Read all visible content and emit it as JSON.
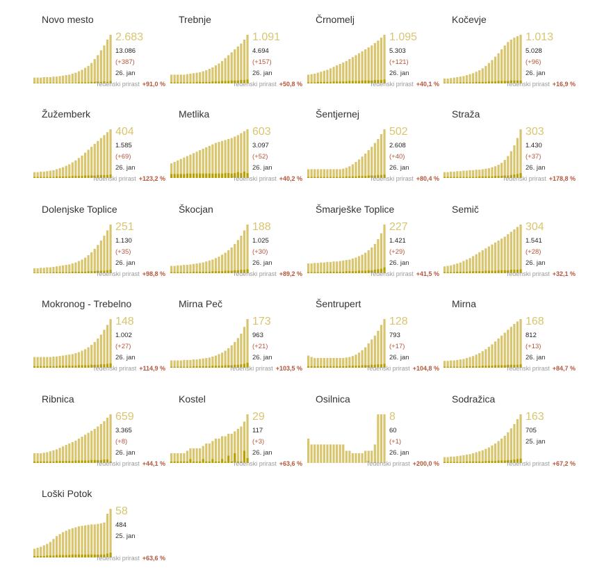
{
  "growth_label": "Tedenski prirast",
  "colors": {
    "active_bar": "#d8c56e",
    "new_bar": "#b8a000",
    "accent_text": "#d8c56e",
    "growth_value": "#b3553a"
  },
  "chart_data": [
    {
      "type": "bar",
      "title": "Novo mesto",
      "active": "2.683",
      "total": "13.086",
      "delta": "(+387)",
      "date": "26. jan",
      "growth": "+91,0 %",
      "active_series": [
        12,
        12,
        12,
        13,
        13,
        13,
        14,
        14,
        15,
        16,
        17,
        18,
        20,
        22,
        25,
        28,
        32,
        36,
        42,
        50,
        58,
        68,
        78,
        90,
        100
      ],
      "new_series": [
        1,
        1,
        1,
        1,
        1,
        1,
        1,
        1,
        1,
        1,
        1,
        1,
        1,
        1,
        2,
        2,
        2,
        2,
        3,
        3,
        3,
        3,
        4,
        3,
        5
      ]
    },
    {
      "type": "bar",
      "title": "Trebnje",
      "active": "1.091",
      "total": "4.694",
      "delta": "(+157)",
      "date": "26. jan",
      "growth": "+50,8 %",
      "active_series": [
        18,
        18,
        18,
        18,
        18,
        19,
        20,
        21,
        22,
        23,
        25,
        27,
        30,
        33,
        37,
        41,
        46,
        52,
        58,
        64,
        70,
        76,
        82,
        90,
        100
      ],
      "new_series": [
        2,
        2,
        2,
        2,
        2,
        2,
        2,
        2,
        3,
        3,
        3,
        3,
        3,
        4,
        4,
        4,
        5,
        5,
        5,
        6,
        6,
        6,
        7,
        7,
        8
      ]
    },
    {
      "type": "bar",
      "title": "Črnomelj",
      "active": "1.095",
      "total": "5.303",
      "delta": "(+121)",
      "date": "26. jan",
      "growth": "+40,1 %",
      "active_series": [
        18,
        19,
        20,
        22,
        24,
        26,
        28,
        31,
        34,
        37,
        40,
        43,
        46,
        50,
        54,
        58,
        62,
        66,
        70,
        74,
        78,
        83,
        88,
        94,
        100
      ],
      "new_series": [
        2,
        2,
        2,
        3,
        3,
        3,
        3,
        3,
        4,
        4,
        4,
        4,
        4,
        5,
        5,
        5,
        5,
        6,
        6,
        6,
        6,
        7,
        7,
        7,
        8
      ]
    },
    {
      "type": "bar",
      "title": "Kočevje",
      "active": "1.013",
      "total": "5.028",
      "delta": "(+96)",
      "date": "26. jan",
      "growth": "+16,9 %",
      "active_series": [
        10,
        10,
        11,
        12,
        13,
        14,
        15,
        17,
        19,
        21,
        24,
        27,
        31,
        36,
        42,
        48,
        55,
        62,
        70,
        78,
        85,
        90,
        94,
        97,
        100
      ],
      "new_series": [
        1,
        1,
        1,
        1,
        1,
        2,
        2,
        2,
        2,
        2,
        3,
        3,
        3,
        3,
        4,
        4,
        4,
        5,
        5,
        5,
        5,
        6,
        6,
        6,
        6
      ]
    },
    {
      "type": "bar",
      "title": "Žužemberk",
      "active": "404",
      "total": "1.585",
      "delta": "(+69)",
      "date": "26. jan",
      "growth": "+123,2 %",
      "active_series": [
        12,
        12,
        13,
        13,
        14,
        15,
        16,
        18,
        20,
        22,
        25,
        28,
        32,
        36,
        41,
        46,
        52,
        58,
        64,
        70,
        76,
        82,
        88,
        94,
        100
      ],
      "new_series": [
        2,
        2,
        2,
        2,
        2,
        2,
        2,
        3,
        3,
        3,
        3,
        3,
        4,
        4,
        4,
        4,
        5,
        5,
        5,
        5,
        6,
        6,
        6,
        6,
        7
      ]
    },
    {
      "type": "bar",
      "title": "Metlika",
      "active": "603",
      "total": "3.097",
      "delta": "(+52)",
      "date": "26. jan",
      "growth": "+40,2 %",
      "active_series": [
        30,
        33,
        36,
        39,
        42,
        45,
        48,
        51,
        54,
        57,
        60,
        63,
        66,
        69,
        72,
        74,
        76,
        78,
        80,
        82,
        85,
        88,
        92,
        96,
        100
      ],
      "new_series": [
        8,
        8,
        8,
        8,
        8,
        9,
        9,
        9,
        9,
        9,
        9,
        9,
        9,
        9,
        9,
        9,
        9,
        10,
        10,
        9,
        10,
        12,
        10,
        13,
        10
      ]
    },
    {
      "type": "bar",
      "title": "Šentjernej",
      "active": "502",
      "total": "2.608",
      "delta": "(+40)",
      "date": "26. jan",
      "growth": "+80,4 %",
      "active_series": [
        18,
        18,
        18,
        18,
        18,
        18,
        18,
        18,
        18,
        18,
        18,
        19,
        21,
        24,
        28,
        33,
        38,
        44,
        50,
        57,
        64,
        72,
        80,
        90,
        100
      ],
      "new_series": [
        2,
        2,
        2,
        2,
        2,
        2,
        2,
        2,
        2,
        2,
        2,
        2,
        3,
        3,
        3,
        3,
        4,
        4,
        4,
        5,
        5,
        5,
        6,
        6,
        7
      ]
    },
    {
      "type": "bar",
      "title": "Straža",
      "active": "303",
      "total": "1.430",
      "delta": "(+37)",
      "date": "26. jan",
      "growth": "+178,8 %",
      "active_series": [
        12,
        12,
        13,
        13,
        14,
        14,
        15,
        15,
        16,
        16,
        17,
        17,
        18,
        19,
        20,
        22,
        24,
        27,
        31,
        37,
        45,
        55,
        67,
        82,
        100
      ],
      "new_series": [
        2,
        2,
        2,
        2,
        2,
        2,
        2,
        2,
        2,
        2,
        2,
        3,
        3,
        3,
        3,
        3,
        4,
        4,
        4,
        5,
        5,
        6,
        7,
        8,
        10
      ]
    },
    {
      "type": "bar",
      "title": "Dolenjske Toplice",
      "active": "251",
      "total": "1.130",
      "delta": "(+35)",
      "date": "26. jan",
      "growth": "+98,8 %",
      "active_series": [
        10,
        10,
        11,
        11,
        12,
        12,
        13,
        14,
        15,
        16,
        17,
        18,
        20,
        22,
        25,
        28,
        32,
        37,
        43,
        50,
        58,
        67,
        77,
        88,
        100
      ],
      "new_series": [
        1,
        1,
        1,
        1,
        1,
        1,
        2,
        2,
        2,
        2,
        2,
        2,
        3,
        3,
        3,
        3,
        3,
        4,
        4,
        4,
        5,
        5,
        5,
        6,
        7
      ]
    },
    {
      "type": "bar",
      "title": "Škocjan",
      "active": "188",
      "total": "1.025",
      "delta": "(+30)",
      "date": "26. jan",
      "growth": "+89,2 %",
      "active_series": [
        15,
        15,
        16,
        16,
        17,
        17,
        18,
        19,
        20,
        21,
        22,
        24,
        26,
        28,
        31,
        34,
        38,
        42,
        47,
        53,
        60,
        68,
        77,
        88,
        100
      ],
      "new_series": [
        2,
        2,
        2,
        2,
        2,
        2,
        2,
        3,
        3,
        3,
        3,
        3,
        3,
        4,
        4,
        4,
        4,
        5,
        5,
        5,
        6,
        6,
        7,
        7,
        8
      ]
    },
    {
      "type": "bar",
      "title": "Šmarješke Toplice",
      "active": "227",
      "total": "1.421",
      "delta": "(+29)",
      "date": "26. jan",
      "growth": "+41,5 %",
      "active_series": [
        20,
        20,
        21,
        21,
        22,
        22,
        23,
        23,
        24,
        24,
        25,
        26,
        27,
        28,
        30,
        32,
        35,
        38,
        42,
        47,
        53,
        60,
        70,
        82,
        100
      ],
      "new_series": [
        2,
        2,
        2,
        2,
        2,
        2,
        3,
        3,
        3,
        3,
        3,
        3,
        4,
        4,
        4,
        4,
        5,
        5,
        5,
        6,
        6,
        7,
        8,
        9,
        12
      ]
    },
    {
      "type": "bar",
      "title": "Semič",
      "active": "304",
      "total": "1.541",
      "delta": "(+28)",
      "date": "26. jan",
      "growth": "+32,1 %",
      "active_series": [
        14,
        15,
        16,
        18,
        20,
        22,
        25,
        28,
        31,
        35,
        39,
        43,
        47,
        51,
        55,
        59,
        63,
        67,
        71,
        75,
        80,
        85,
        90,
        95,
        100
      ],
      "new_series": [
        2,
        2,
        2,
        2,
        3,
        3,
        3,
        3,
        4,
        4,
        4,
        4,
        4,
        5,
        5,
        5,
        5,
        6,
        6,
        6,
        6,
        7,
        7,
        7,
        8
      ]
    },
    {
      "type": "bar",
      "title": "Mokronog - Trebelno",
      "active": "148",
      "total": "1.002",
      "delta": "(+27)",
      "date": "26. jan",
      "growth": "+114,9 %",
      "active_series": [
        22,
        22,
        22,
        22,
        22,
        22,
        23,
        23,
        24,
        25,
        26,
        27,
        28,
        30,
        32,
        35,
        38,
        42,
        47,
        53,
        60,
        68,
        78,
        88,
        100
      ],
      "new_series": [
        3,
        3,
        3,
        3,
        3,
        3,
        3,
        3,
        4,
        4,
        4,
        4,
        4,
        4,
        5,
        5,
        5,
        5,
        6,
        6,
        6,
        7,
        7,
        8,
        9
      ]
    },
    {
      "type": "bar",
      "title": "Mirna Peč",
      "active": "173",
      "total": "963",
      "delta": "(+21)",
      "date": "26. jan",
      "growth": "+103,5 %",
      "active_series": [
        15,
        15,
        15,
        15,
        16,
        16,
        16,
        17,
        17,
        18,
        19,
        20,
        21,
        23,
        25,
        28,
        31,
        35,
        40,
        46,
        53,
        61,
        70,
        84,
        100
      ],
      "new_series": [
        2,
        2,
        2,
        2,
        2,
        2,
        2,
        3,
        3,
        3,
        3,
        3,
        3,
        4,
        4,
        4,
        4,
        5,
        5,
        5,
        6,
        6,
        7,
        8,
        10
      ]
    },
    {
      "type": "bar",
      "title": "Šentrupert",
      "active": "128",
      "total": "793",
      "delta": "(+17)",
      "date": "26. jan",
      "growth": "+104,8 %",
      "active_series": [
        25,
        22,
        20,
        20,
        20,
        20,
        20,
        20,
        20,
        20,
        20,
        20,
        21,
        22,
        24,
        27,
        31,
        36,
        42,
        50,
        58,
        66,
        76,
        88,
        100
      ],
      "new_series": [
        3,
        3,
        3,
        3,
        3,
        3,
        3,
        3,
        3,
        3,
        3,
        3,
        3,
        4,
        4,
        4,
        4,
        5,
        5,
        5,
        6,
        6,
        7,
        7,
        8
      ]
    },
    {
      "type": "bar",
      "title": "Mirna",
      "active": "168",
      "total": "812",
      "delta": "(+13)",
      "date": "26. jan",
      "growth": "+84,7 %",
      "active_series": [
        14,
        14,
        15,
        15,
        16,
        17,
        18,
        20,
        22,
        24,
        27,
        30,
        34,
        38,
        43,
        48,
        54,
        60,
        66,
        72,
        78,
        84,
        90,
        95,
        100
      ],
      "new_series": [
        2,
        2,
        2,
        2,
        2,
        2,
        2,
        3,
        3,
        3,
        3,
        3,
        4,
        4,
        4,
        4,
        5,
        5,
        5,
        5,
        6,
        6,
        6,
        6,
        7
      ]
    },
    {
      "type": "bar",
      "title": "Ribnica",
      "active": "659",
      "total": "3.365",
      "delta": "(+8)",
      "date": "26. jan",
      "growth": "+44,1 %",
      "active_series": [
        20,
        20,
        20,
        21,
        22,
        24,
        26,
        28,
        31,
        34,
        37,
        40,
        43,
        46,
        50,
        54,
        58,
        62,
        66,
        70,
        75,
        80,
        86,
        93,
        100
      ],
      "new_series": [
        3,
        3,
        3,
        3,
        3,
        3,
        3,
        4,
        4,
        4,
        4,
        4,
        4,
        5,
        5,
        5,
        5,
        5,
        6,
        6,
        6,
        6,
        7,
        7,
        3
      ]
    },
    {
      "type": "bar",
      "title": "Kostel",
      "active": "29",
      "total": "117",
      "delta": "(+3)",
      "date": "26. jan",
      "growth": "+63,6 %",
      "active_series": [
        20,
        20,
        20,
        20,
        20,
        25,
        30,
        30,
        30,
        30,
        35,
        40,
        40,
        45,
        50,
        50,
        55,
        55,
        60,
        60,
        65,
        70,
        75,
        85,
        100
      ],
      "new_series": [
        3,
        3,
        3,
        3,
        3,
        3,
        8,
        3,
        3,
        3,
        8,
        3,
        3,
        8,
        3,
        3,
        8,
        3,
        15,
        3,
        20,
        3,
        3,
        25,
        10
      ]
    },
    {
      "type": "bar",
      "title": "Osilnica",
      "active": "8",
      "total": "60",
      "delta": "(+1)",
      "date": "26. jan",
      "growth": "+200,0 %",
      "active_series": [
        50,
        38,
        38,
        38,
        38,
        38,
        38,
        38,
        38,
        38,
        38,
        38,
        25,
        25,
        20,
        20,
        20,
        20,
        25,
        25,
        25,
        38,
        100,
        100,
        100
      ],
      "new_series": [
        0,
        0,
        0,
        0,
        0,
        0,
        0,
        0,
        0,
        0,
        0,
        0,
        0,
        0,
        0,
        0,
        0,
        0,
        0,
        0,
        0,
        0,
        0,
        0,
        0
      ]
    },
    {
      "type": "bar",
      "title": "Sodražica",
      "active": "163",
      "total": "705",
      "delta": "",
      "date": "25. jan",
      "growth": "+67,2 %",
      "active_series": [
        12,
        12,
        13,
        13,
        14,
        15,
        16,
        17,
        18,
        20,
        22,
        24,
        26,
        29,
        32,
        36,
        40,
        45,
        50,
        56,
        63,
        71,
        80,
        90,
        100
      ],
      "new_series": [
        2,
        2,
        2,
        2,
        2,
        2,
        2,
        3,
        3,
        3,
        3,
        3,
        3,
        4,
        4,
        4,
        4,
        5,
        5,
        5,
        6,
        6,
        7,
        8,
        9
      ]
    },
    {
      "type": "bar",
      "title": "Loški Potok",
      "active": "58",
      "total": "484",
      "delta": "",
      "date": "25. jan",
      "growth": "+63,6 %",
      "active_series": [
        18,
        20,
        22,
        25,
        28,
        32,
        38,
        44,
        48,
        52,
        55,
        58,
        60,
        62,
        64,
        65,
        66,
        67,
        68,
        68,
        69,
        70,
        72,
        90,
        100
      ],
      "new_series": [
        3,
        3,
        3,
        3,
        4,
        4,
        4,
        5,
        5,
        5,
        5,
        5,
        6,
        6,
        6,
        6,
        6,
        6,
        6,
        6,
        6,
        6,
        6,
        8,
        10
      ]
    }
  ]
}
